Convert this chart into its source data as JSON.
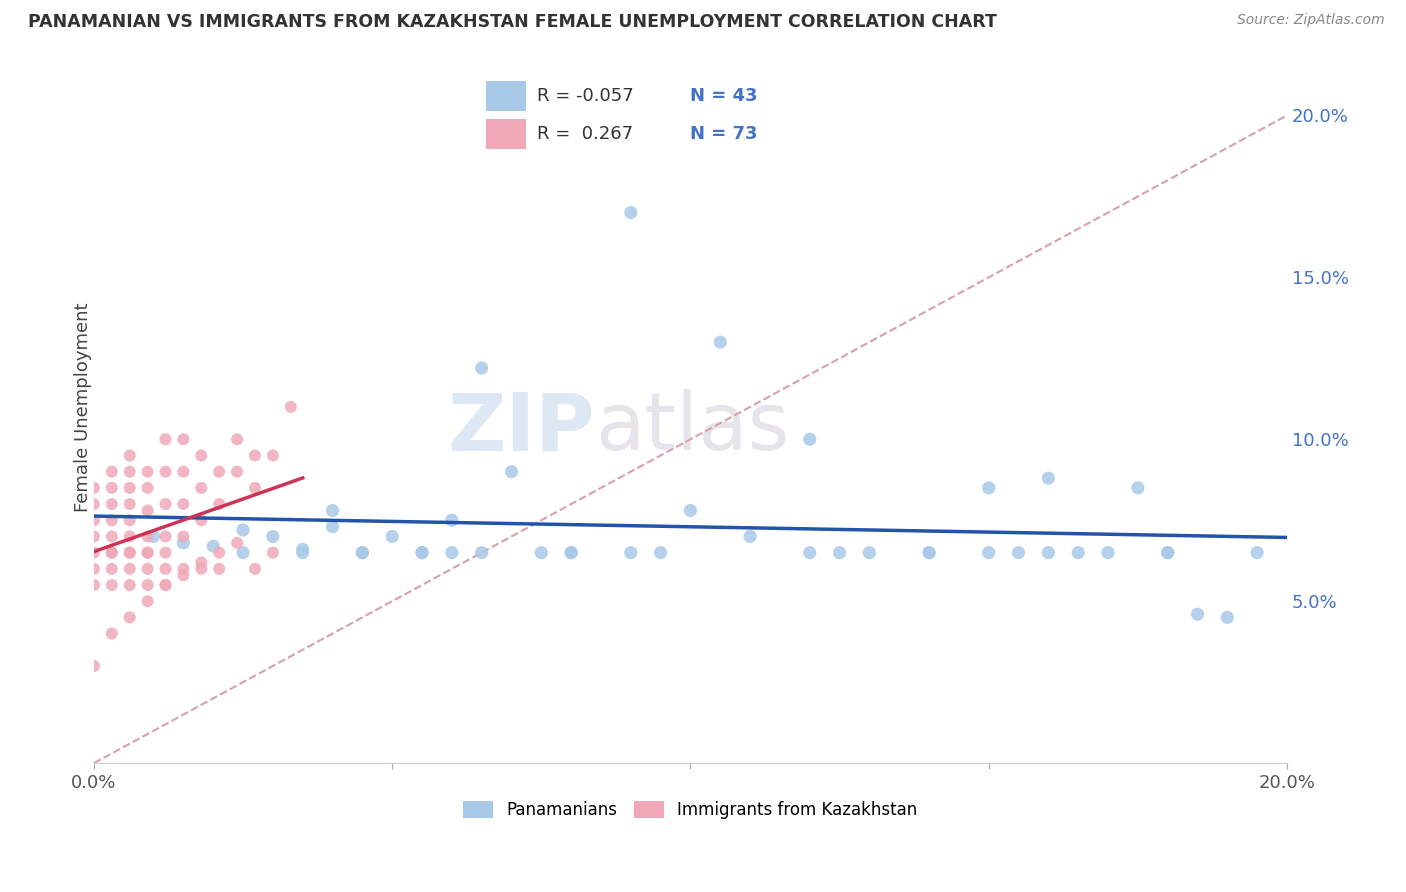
{
  "title": "PANAMANIAN VS IMMIGRANTS FROM KAZAKHSTAN FEMALE UNEMPLOYMENT CORRELATION CHART",
  "source_text": "Source: ZipAtlas.com",
  "ylabel": "Female Unemployment",
  "xlim": [
    0.0,
    0.2
  ],
  "ylim": [
    0.0,
    0.22
  ],
  "ytick_vals": [
    0.05,
    0.1,
    0.15,
    0.2
  ],
  "ytick_labels": [
    "5.0%",
    "10.0%",
    "15.0%",
    "20.0%"
  ],
  "xtick_vals": [
    0.0,
    0.2
  ],
  "xtick_labels": [
    "0.0%",
    "20.0%"
  ],
  "blue_scatter_x": [
    0.01,
    0.015,
    0.02,
    0.025,
    0.03,
    0.035,
    0.04,
    0.04,
    0.045,
    0.05,
    0.055,
    0.06,
    0.06,
    0.065,
    0.07,
    0.075,
    0.08,
    0.09,
    0.095,
    0.1,
    0.105,
    0.11,
    0.12,
    0.14,
    0.15,
    0.16,
    0.17,
    0.18,
    0.19,
    0.08,
    0.09,
    0.13,
    0.025,
    0.035,
    0.045,
    0.055,
    0.065,
    0.125,
    0.155,
    0.175,
    0.185,
    0.195,
    0.165,
    0.15,
    0.18,
    0.16,
    0.14,
    0.12
  ],
  "blue_scatter_y": [
    0.07,
    0.068,
    0.067,
    0.072,
    0.07,
    0.066,
    0.078,
    0.073,
    0.065,
    0.07,
    0.065,
    0.075,
    0.065,
    0.122,
    0.09,
    0.065,
    0.065,
    0.065,
    0.065,
    0.078,
    0.13,
    0.07,
    0.1,
    0.065,
    0.085,
    0.065,
    0.065,
    0.065,
    0.045,
    0.065,
    0.17,
    0.065,
    0.065,
    0.065,
    0.065,
    0.065,
    0.065,
    0.065,
    0.065,
    0.085,
    0.046,
    0.065,
    0.065,
    0.065,
    0.065,
    0.088,
    0.065,
    0.065
  ],
  "pink_scatter_x": [
    0.0,
    0.0,
    0.0,
    0.0,
    0.0,
    0.0,
    0.0,
    0.003,
    0.003,
    0.003,
    0.003,
    0.003,
    0.003,
    0.003,
    0.003,
    0.006,
    0.006,
    0.006,
    0.006,
    0.006,
    0.006,
    0.006,
    0.006,
    0.006,
    0.009,
    0.009,
    0.009,
    0.009,
    0.009,
    0.009,
    0.009,
    0.012,
    0.012,
    0.012,
    0.012,
    0.012,
    0.012,
    0.015,
    0.015,
    0.015,
    0.015,
    0.015,
    0.018,
    0.018,
    0.018,
    0.018,
    0.021,
    0.021,
    0.021,
    0.024,
    0.024,
    0.027,
    0.027,
    0.027,
    0.03,
    0.03,
    0.033,
    0.0,
    0.003,
    0.006,
    0.009,
    0.012,
    0.015,
    0.018,
    0.021,
    0.024,
    0.003,
    0.006,
    0.009,
    0.012
  ],
  "pink_scatter_y": [
    0.065,
    0.07,
    0.075,
    0.08,
    0.085,
    0.06,
    0.055,
    0.065,
    0.07,
    0.075,
    0.08,
    0.085,
    0.09,
    0.055,
    0.06,
    0.065,
    0.07,
    0.075,
    0.08,
    0.085,
    0.09,
    0.095,
    0.055,
    0.06,
    0.065,
    0.07,
    0.078,
    0.085,
    0.09,
    0.055,
    0.06,
    0.07,
    0.08,
    0.09,
    0.1,
    0.055,
    0.06,
    0.07,
    0.08,
    0.09,
    0.1,
    0.06,
    0.075,
    0.085,
    0.095,
    0.06,
    0.08,
    0.09,
    0.06,
    0.09,
    0.1,
    0.085,
    0.095,
    0.06,
    0.095,
    0.065,
    0.11,
    0.03,
    0.04,
    0.045,
    0.05,
    0.055,
    0.058,
    0.062,
    0.065,
    0.068,
    0.065,
    0.065,
    0.065,
    0.065
  ],
  "blue_color": "#a8c8e8",
  "pink_color": "#f0a8b8",
  "blue_line_color": "#2255aa",
  "pink_line_color": "#cc3355",
  "trend_dashed_color": "#d8a0a8",
  "watermark_zip": "ZIP",
  "watermark_atlas": "atlas",
  "R_blue": -0.057,
  "N_blue": 43,
  "R_pink": 0.267,
  "N_pink": 73,
  "legend_label_blue": "Panamanians",
  "legend_label_pink": "Immigrants from Kazakhstan"
}
